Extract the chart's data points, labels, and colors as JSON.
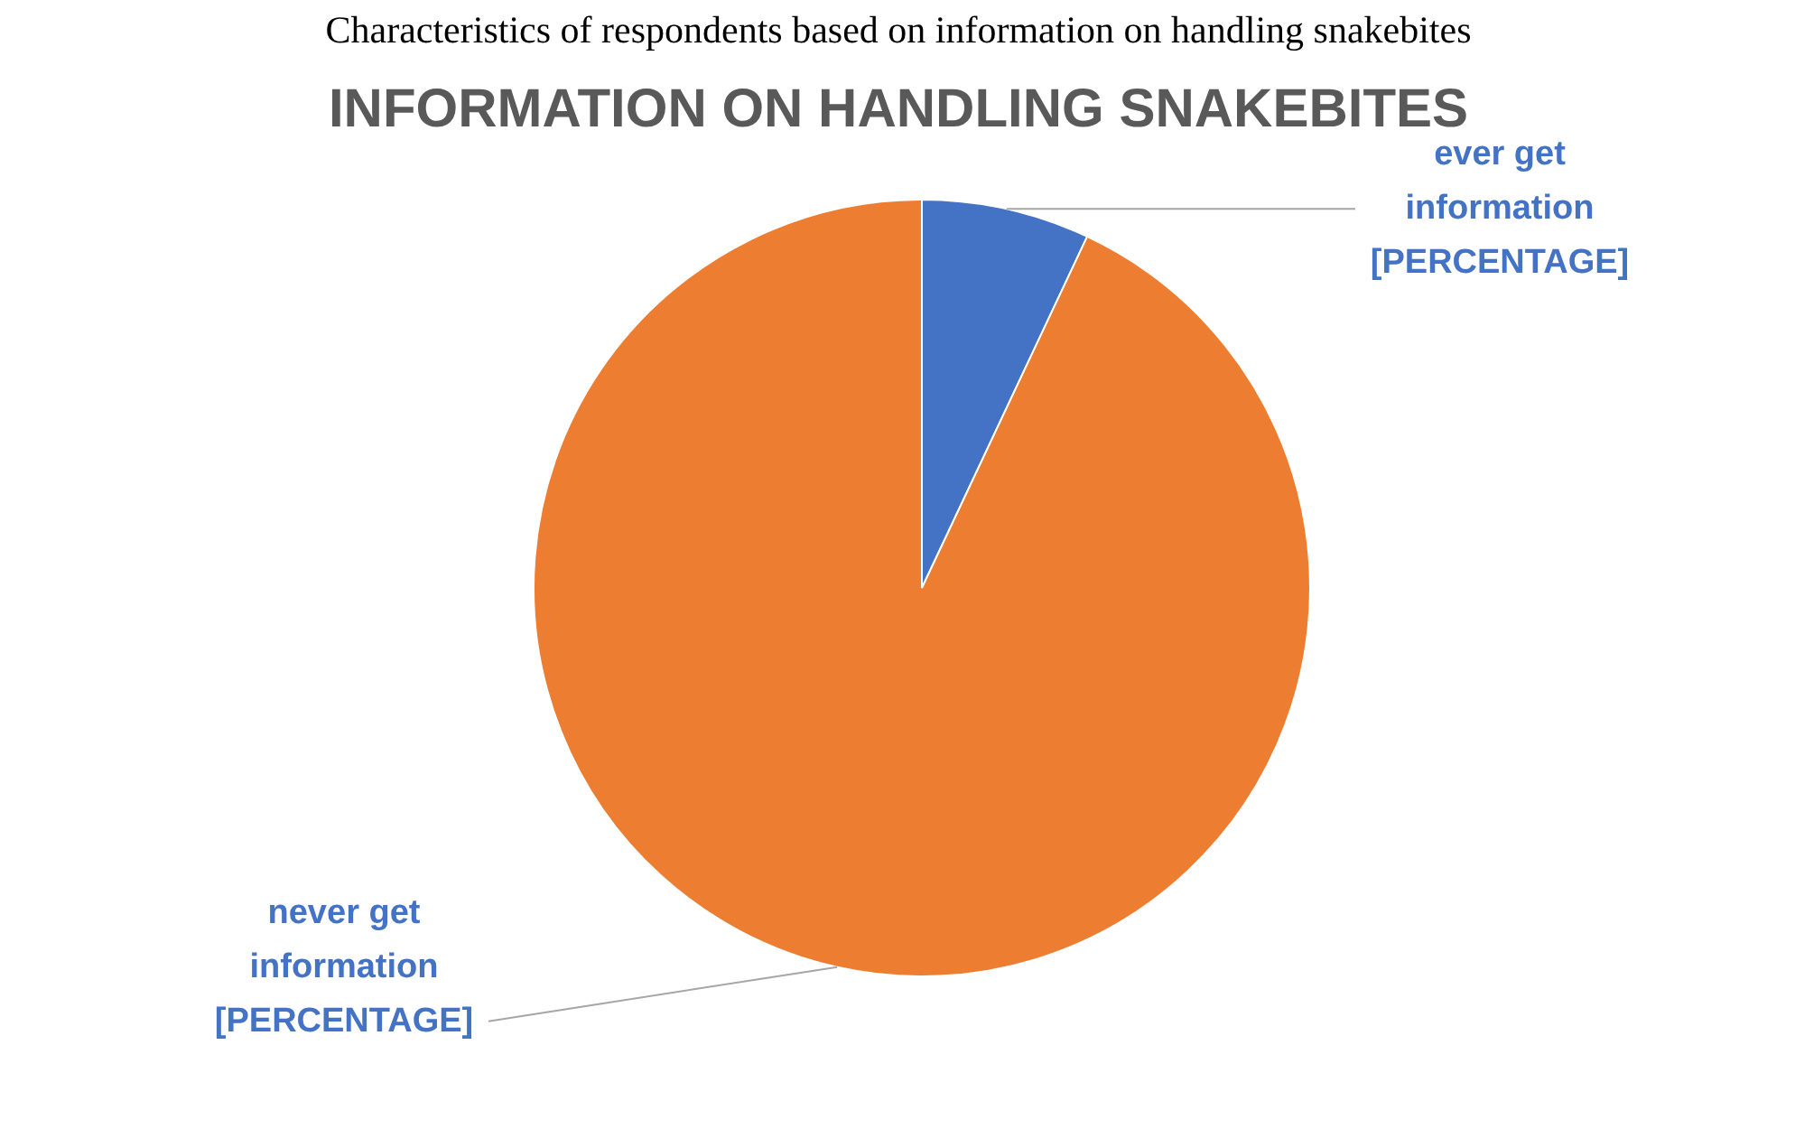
{
  "chart_data": {
    "type": "pie",
    "title": "INFORMATION ON HANDLING SNAKEBITES",
    "annotations": [
      "Characteristics of respondents based on information on handling snakebites"
    ],
    "categories": [
      "ever get information",
      "never get information"
    ],
    "values": [
      7,
      93
    ],
    "colors": [
      "#4472c4",
      "#ed7d31"
    ],
    "value_labels": [
      "[PERCENTAGE]",
      "[PERCENTAGE]"
    ]
  }
}
